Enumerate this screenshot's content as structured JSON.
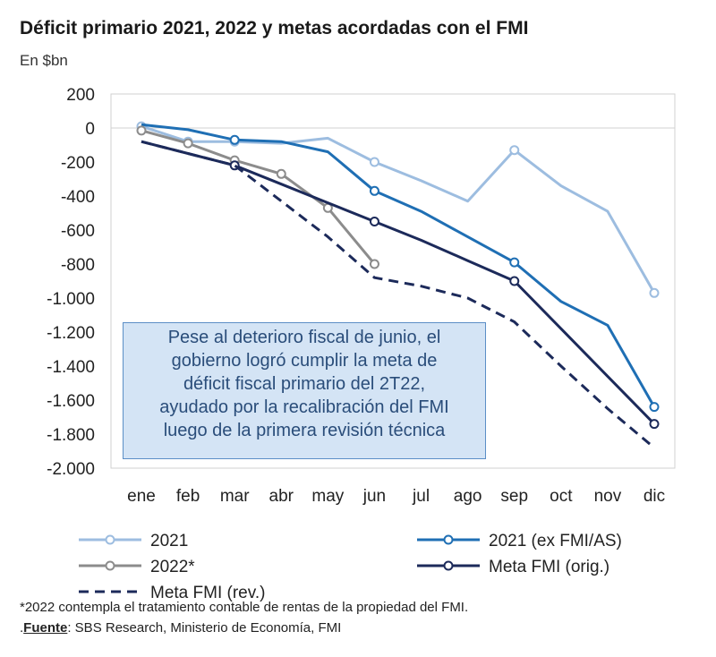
{
  "header": {
    "title": "Déficit primario 2021, 2022 y metas acordadas con el FMI",
    "subtitle": "En $bn"
  },
  "chart_data": {
    "type": "line",
    "title": "Déficit primario 2021, 2022 y metas acordadas con el FMI",
    "ylabel": "En $bn",
    "ylim": [
      -2000,
      200
    ],
    "ytick_values": [
      200,
      0,
      -200,
      -400,
      -600,
      -800,
      -1000,
      -1200,
      -1400,
      -1600,
      -1800,
      -2000
    ],
    "ytick_labels": [
      "200",
      "0",
      "-200",
      "-400",
      "-600",
      "-800",
      "-1.000",
      "-1.200",
      "-1.400",
      "-1.600",
      "-1.800",
      "-2.000"
    ],
    "categories": [
      "ene",
      "feb",
      "mar",
      "abr",
      "may",
      "jun",
      "jul",
      "ago",
      "sep",
      "oct",
      "nov",
      "dic"
    ],
    "series": [
      {
        "name": "2021",
        "color": "#9dbde0",
        "dashed": false,
        "values": [
          10,
          -80,
          -80,
          -90,
          -60,
          -200,
          -310,
          -430,
          -130,
          -340,
          -490,
          -970
        ],
        "markers": [
          0,
          1,
          2,
          5,
          8,
          11
        ]
      },
      {
        "name": "2021 (ex FMI/AS)",
        "color": "#1f6fb4",
        "dashed": false,
        "values": [
          20,
          -10,
          -70,
          -80,
          -140,
          -370,
          -490,
          -640,
          -790,
          -1020,
          -1160,
          -1640
        ],
        "markers": [
          2,
          5,
          8,
          11
        ]
      },
      {
        "name": "2022*",
        "color": "#8c8c8c",
        "dashed": false,
        "values": [
          -15,
          -90,
          -190,
          -270,
          -470,
          -800,
          null,
          null,
          null,
          null,
          null,
          null
        ],
        "markers": [
          0,
          1,
          2,
          3,
          4,
          5
        ]
      },
      {
        "name": "Meta FMI (orig.)",
        "color": "#1c2a5a",
        "dashed": false,
        "values": [
          -80,
          -150,
          -220,
          -330,
          -440,
          -550,
          -660,
          -780,
          -900,
          -1180,
          -1460,
          -1740
        ],
        "markers": [
          2,
          5,
          8,
          11
        ]
      },
      {
        "name": "Meta FMI (rev.)",
        "color": "#1c2a5a",
        "dashed": true,
        "values": [
          -80,
          -150,
          -220,
          -430,
          -640,
          -880,
          -930,
          -1000,
          -1140,
          -1400,
          -1650,
          -1880
        ],
        "markers": [
          2,
          5,
          8,
          11
        ]
      }
    ],
    "annotation": [
      "Pese al deterioro fiscal de junio, el",
      "gobierno logró cumplir la meta de",
      "déficit fiscal primario del 2T22,",
      "ayudado por la recalibración del FMI",
      "luego de la primera revisión técnica"
    ]
  },
  "legend": [
    "2021",
    "2021 (ex FMI/AS)",
    "2022*",
    "Meta FMI (orig.)",
    "Meta FMI (rev.)"
  ],
  "footer": {
    "note": "*2022 contempla el tratamiento contable de rentas de la propiedad del FMI.",
    "source_prefix": ".",
    "source_label": "Fuente",
    "source_text": ": SBS Research, Ministerio de Economía, FMI"
  }
}
